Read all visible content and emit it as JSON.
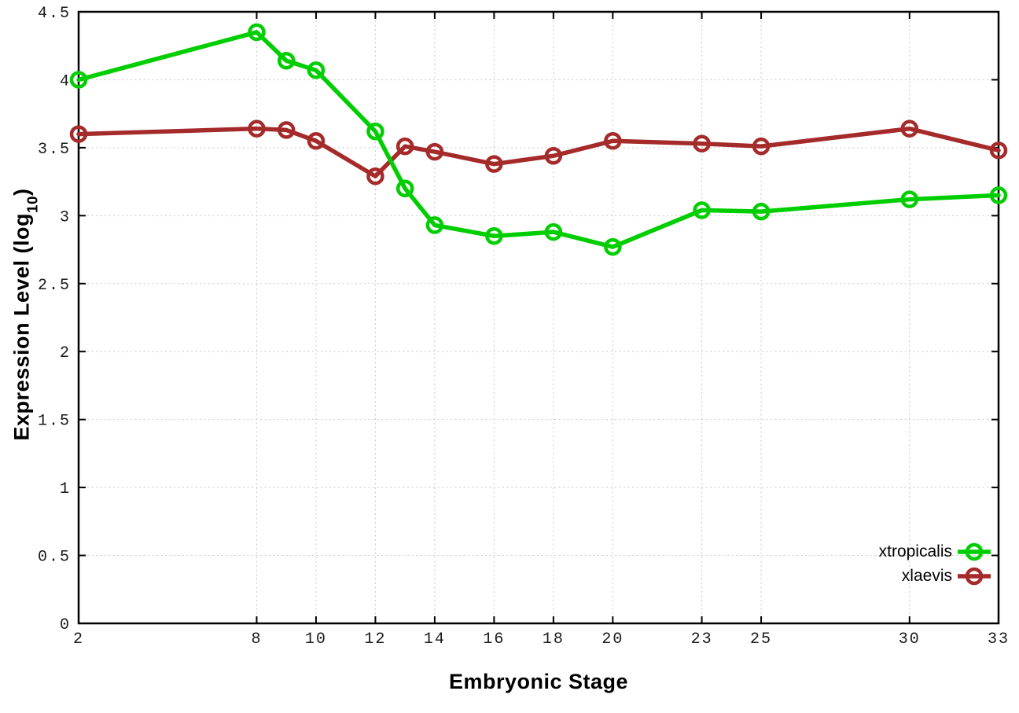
{
  "figure": {
    "background": "#FFFFFF",
    "frame_color": "#000000",
    "grid_color": "#C9C9C9",
    "tick_label_color": "#1A1A1A"
  },
  "axis_titles": {
    "x": "Embryonic Stage",
    "y_prefix": "Expression Level (log",
    "y_sub": "10",
    "y_suffix": ")"
  },
  "legend": {
    "position": "inside-right-lower",
    "items": [
      {
        "label": "xtropicalis",
        "color": "#00CE00"
      },
      {
        "label": "xlaevis",
        "color": "#A52A2A"
      }
    ]
  },
  "chart_data": {
    "type": "line",
    "title": "",
    "xlabel": "Embryonic Stage",
    "ylabel": "Expression Level (log10)",
    "x": [
      2,
      8,
      9,
      10,
      12,
      13,
      14,
      16,
      18,
      20,
      23,
      25,
      30,
      33
    ],
    "series": [
      {
        "name": "xtropicalis",
        "color": "#00CE00",
        "values": [
          4.0,
          4.35,
          4.14,
          4.07,
          3.62,
          3.2,
          2.93,
          2.85,
          2.88,
          2.77,
          3.04,
          3.03,
          3.12,
          3.15
        ]
      },
      {
        "name": "xlaevis",
        "color": "#A52A2A",
        "values": [
          3.6,
          3.64,
          3.63,
          3.55,
          3.29,
          3.51,
          3.47,
          3.38,
          3.44,
          3.55,
          3.53,
          3.51,
          3.64,
          3.48
        ]
      }
    ],
    "xticks": [
      2,
      8,
      10,
      12,
      14,
      16,
      18,
      20,
      23,
      25,
      30,
      33
    ],
    "yticks": [
      0,
      0.5,
      1,
      1.5,
      2,
      2.5,
      3,
      3.5,
      4,
      4.5
    ],
    "xlim": [
      2,
      33
    ],
    "ylim": [
      0,
      4.5
    ],
    "grid": true,
    "grid_style": "dotted",
    "marker": "open-circle",
    "legend_entries": [
      "xtropicalis",
      "xlaevis"
    ]
  }
}
